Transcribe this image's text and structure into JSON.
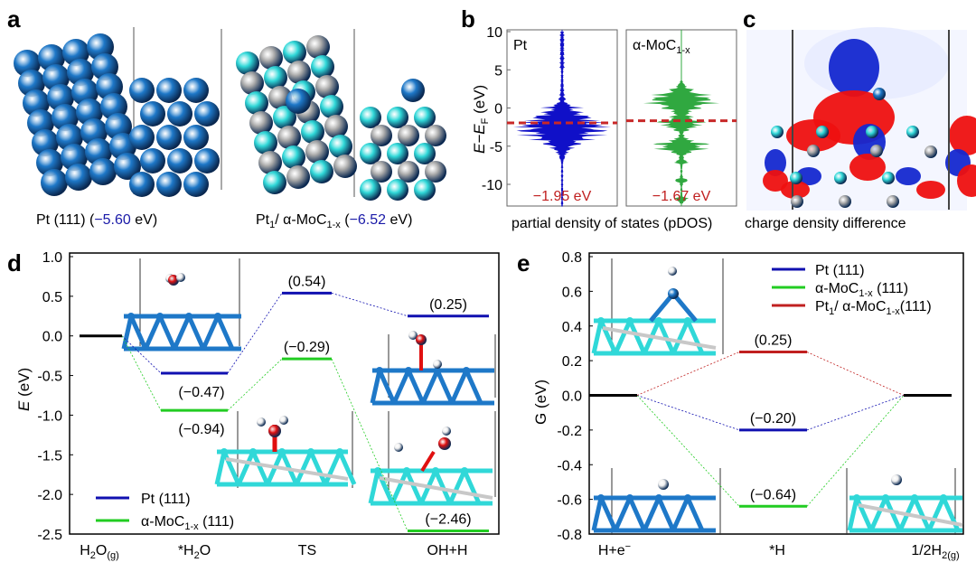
{
  "panels": {
    "a": {
      "label": "a",
      "left_caption": {
        "name": "Pt (111) (",
        "value": "−5.60",
        "unit": " eV)"
      },
      "right_caption": {
        "pre": "Pt",
        "sub1": "1",
        "mid": "/ α-MoC",
        "sub2": "1-x",
        "paren": " (",
        "value": "−6.52",
        "unit": " eV)"
      }
    },
    "b": {
      "label": "b",
      "caption": "partial density of states (pDOS)"
    },
    "c": {
      "label": "c",
      "caption": "charge density difference"
    },
    "d": {
      "label": "d"
    },
    "e": {
      "label": "e"
    }
  },
  "colors": {
    "pt": "#1010b0",
    "moc": "#22cc22",
    "pt1": "#c02020",
    "black": "#000000",
    "ptatom": "#1e78c8",
    "mocatom": "#30d8d8",
    "carbon": "#b0b0b0"
  },
  "chart_data": [
    {
      "id": "b",
      "type": "area",
      "title": "partial density of states (pDOS)",
      "ylabel": "E−E_F (eV)",
      "ylabel_parts": {
        "e": "E",
        "dash": "−E",
        "sub": "F",
        "unit": " (eV)"
      },
      "ylim": [
        -13,
        10
      ],
      "yticks": [
        "10",
        "5",
        "0",
        "-5",
        "-10"
      ],
      "ytick_values": [
        10,
        5,
        0,
        -5,
        -10
      ],
      "subplots": [
        {
          "name": "Pt",
          "d_band_center": -1.95,
          "d_band_label": "−1.95 eV",
          "color": "#1010c8"
        },
        {
          "name": "α-MoC",
          "name_sub": "1-x",
          "d_band_center": -1.67,
          "d_band_label": "−1.67 eV",
          "color": "#30a840"
        }
      ]
    },
    {
      "id": "d",
      "type": "line",
      "title": "",
      "ylabel": "E (eV)",
      "ylabel_parts": {
        "e": "E",
        "unit": " (eV)"
      },
      "ylim": [
        -2.5,
        1.0
      ],
      "yticks": [
        "1.0",
        "0.5",
        "0.0",
        "-0.5",
        "-1.0",
        "-1.5",
        "-2.0",
        "-2.5"
      ],
      "ytick_values": [
        1.0,
        0.5,
        0.0,
        -0.5,
        -1.0,
        -1.5,
        -2.0,
        -2.5
      ],
      "categories": [
        {
          "main": "H",
          "sub1": "2",
          "mid": "O",
          "sub2": "(g)"
        },
        {
          "main": "*H",
          "sub1": "2",
          "mid": "O",
          "sub2": ""
        },
        {
          "main": "TS",
          "sub1": "",
          "mid": "",
          "sub2": ""
        },
        {
          "main": "OH+H",
          "sub1": "",
          "mid": "",
          "sub2": ""
        }
      ],
      "initial": 0.0,
      "series": [
        {
          "name": "Pt (111)",
          "legend": {
            "pre": "Pt (111)",
            "sub": "",
            "post": ""
          },
          "color": "#1010b0",
          "values": [
            0.0,
            -0.47,
            0.54,
            0.25
          ],
          "labels": [
            "",
            "(−0.47)",
            "(0.54)",
            "(0.25)"
          ]
        },
        {
          "name": "α-MoC1-x (111)",
          "legend": {
            "pre": "α-MoC",
            "sub": "1-x",
            "post": " (111)"
          },
          "color": "#22cc22",
          "values": [
            0.0,
            -0.94,
            -0.29,
            -2.46
          ],
          "labels": [
            "",
            "(−0.94)",
            "(−0.29)",
            "(−2.46)"
          ]
        }
      ],
      "legend_position": "bottom-left"
    },
    {
      "id": "e",
      "type": "line",
      "title": "",
      "ylabel": "G (eV)",
      "ylim": [
        -0.8,
        0.8
      ],
      "yticks": [
        "0.8",
        "0.6",
        "0.4",
        "0.2",
        "0.0",
        "-0.2",
        "-0.4",
        "-0.6",
        "-0.8"
      ],
      "ytick_values": [
        0.8,
        0.6,
        0.4,
        0.2,
        0.0,
        -0.2,
        -0.4,
        -0.6,
        -0.8
      ],
      "categories": [
        {
          "main": "H+e",
          "sup": "−",
          "sub": ""
        },
        {
          "main": "*H",
          "sup": "",
          "sub": ""
        },
        {
          "main": "1/2H",
          "sup": "",
          "sub": "2(g)"
        }
      ],
      "series": [
        {
          "name": "Pt (111)",
          "legend": {
            "pre": "Pt (111)",
            "sub": "",
            "mid": "",
            "sub2": "",
            "post": ""
          },
          "color": "#1010b0",
          "values": [
            0.0,
            -0.2,
            0.0
          ],
          "label": "(−0.20)"
        },
        {
          "name": "α-MoC1-x (111)",
          "legend": {
            "pre": "α-MoC",
            "sub": "1-x",
            "mid": "",
            "sub2": "",
            "post": " (111)"
          },
          "color": "#22cc22",
          "values": [
            0.0,
            -0.64,
            0.0
          ],
          "label": "(−0.64)"
        },
        {
          "name": "Pt1/ α-MoC1-x(111)",
          "legend": {
            "pre": "Pt",
            "sub": "1",
            "mid": "/ α-MoC",
            "sub2": "1-x",
            "post": "(111)"
          },
          "color": "#c02020",
          "values": [
            0.0,
            0.25,
            0.0
          ],
          "label": "(0.25)"
        }
      ],
      "legend_position": "top-right"
    }
  ]
}
